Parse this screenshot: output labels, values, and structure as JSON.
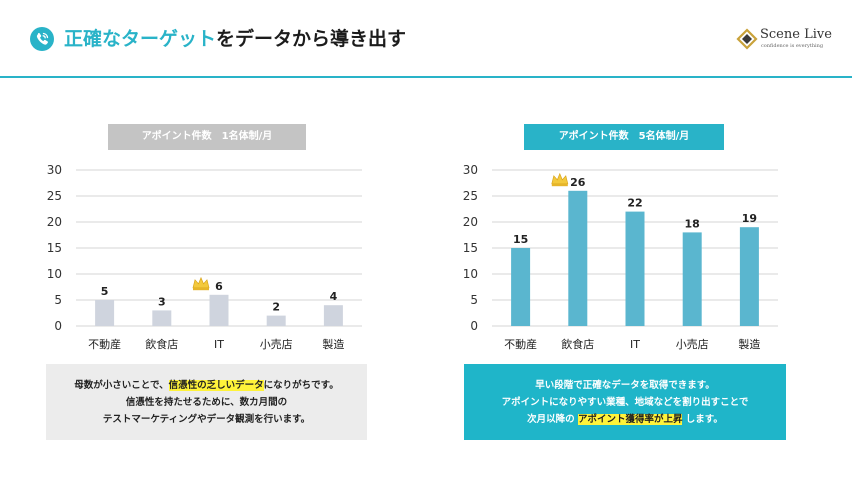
{
  "header": {
    "title_highlight": "正確なターゲット",
    "title_rest": "をデータから導き出す",
    "logo_name": "Scene Live",
    "logo_tagline": "confidence is everything",
    "phone_icon": "phone-icon",
    "accent_color": "#29b3c8"
  },
  "chart_data": [
    {
      "type": "bar",
      "title": "アポイント件数　1名体制/月",
      "categories": [
        "不動産",
        "飲食店",
        "IT",
        "小売店",
        "製造"
      ],
      "values": [
        5,
        3,
        6,
        2,
        4
      ],
      "ylim": [
        0,
        30
      ],
      "yticks": [
        0,
        5,
        10,
        15,
        20,
        25,
        30
      ],
      "grid": true,
      "bar_color": "#cfd4de",
      "crown_on": "IT",
      "crown_icon": "crown-icon"
    },
    {
      "type": "bar",
      "title": "アポイント件数　5名体制/月",
      "categories": [
        "不動産",
        "飲食店",
        "IT",
        "小売店",
        "製造"
      ],
      "values": [
        15,
        26,
        22,
        18,
        19
      ],
      "ylim": [
        0,
        30
      ],
      "yticks": [
        0,
        5,
        10,
        15,
        20,
        25,
        30
      ],
      "grid": true,
      "bar_color": "#5ab6cf",
      "crown_on": "飲食店",
      "crown_icon": "crown-icon"
    }
  ],
  "notes": {
    "left": {
      "line1_pre": "母数が小さいことで、",
      "line1_mark": "信憑性の乏しいデータ",
      "line1_post": "になりがちです。",
      "line2": "信憑性を持たせるために、数カ月間の",
      "line3": "テストマーケティングやデータ観測を行います。"
    },
    "right": {
      "line1": "早い段階で正確なデータを取得できます。",
      "line2": "アポイントになりやすい業種、地域などを割り出すことで",
      "line3_pre": "次月以降の",
      "line3_mark": "アポイント獲得率が上昇",
      "line3_post": "します。"
    }
  }
}
